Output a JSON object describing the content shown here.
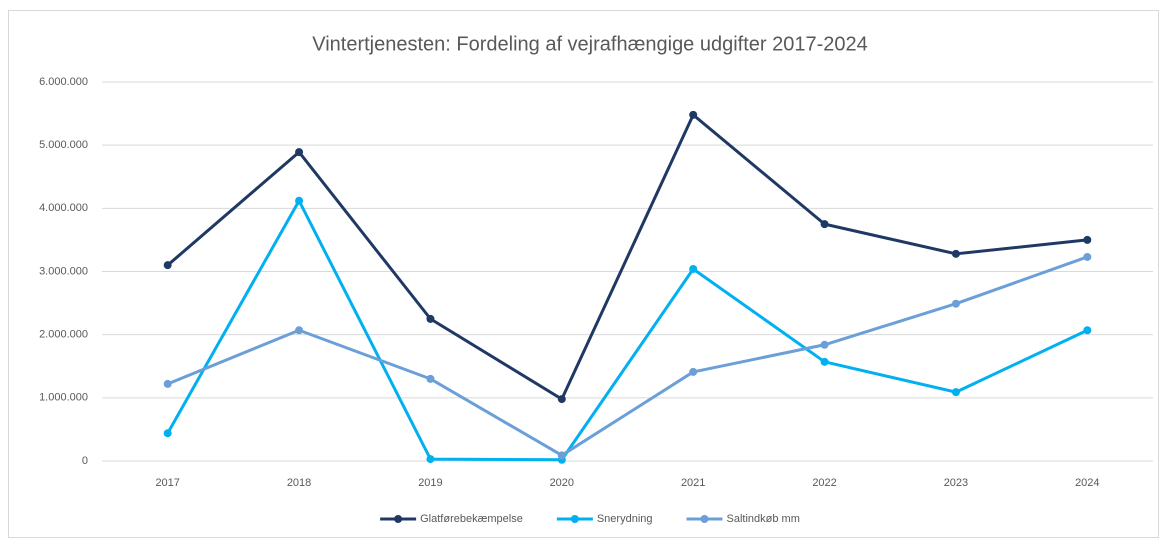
{
  "chart_data": {
    "type": "line",
    "title": "Vintertjenesten: Fordeling af vejrafhængige udgifter 2017-2024",
    "categories": [
      "2017",
      "2018",
      "2019",
      "2020",
      "2021",
      "2022",
      "2023",
      "2024"
    ],
    "series": [
      {
        "name": "Glatførebekæmpelse",
        "color": "#1f3864",
        "values": [
          3100000,
          4890000,
          2250000,
          980000,
          5480000,
          3750000,
          3280000,
          3500000
        ]
      },
      {
        "name": "Snerydning",
        "color": "#00b0f0",
        "values": [
          440000,
          4120000,
          30000,
          20000,
          3040000,
          1570000,
          1090000,
          2070000
        ]
      },
      {
        "name": "Saltindkøb mm",
        "color": "#6a9fd8",
        "values": [
          1220000,
          2070000,
          1300000,
          90000,
          1410000,
          1840000,
          2490000,
          3230000
        ]
      }
    ],
    "ylim": [
      0,
      6000000
    ],
    "yticks": [
      {
        "value": 0,
        "label": "0"
      },
      {
        "value": 1000000,
        "label": "1.000.000"
      },
      {
        "value": 2000000,
        "label": "2.000.000"
      },
      {
        "value": 3000000,
        "label": "3.000.000"
      },
      {
        "value": 4000000,
        "label": "4.000.000"
      },
      {
        "value": 5000000,
        "label": "5.000.000"
      },
      {
        "value": 6000000,
        "label": "6.000.000"
      }
    ],
    "grid": true,
    "legend": "bottom"
  }
}
